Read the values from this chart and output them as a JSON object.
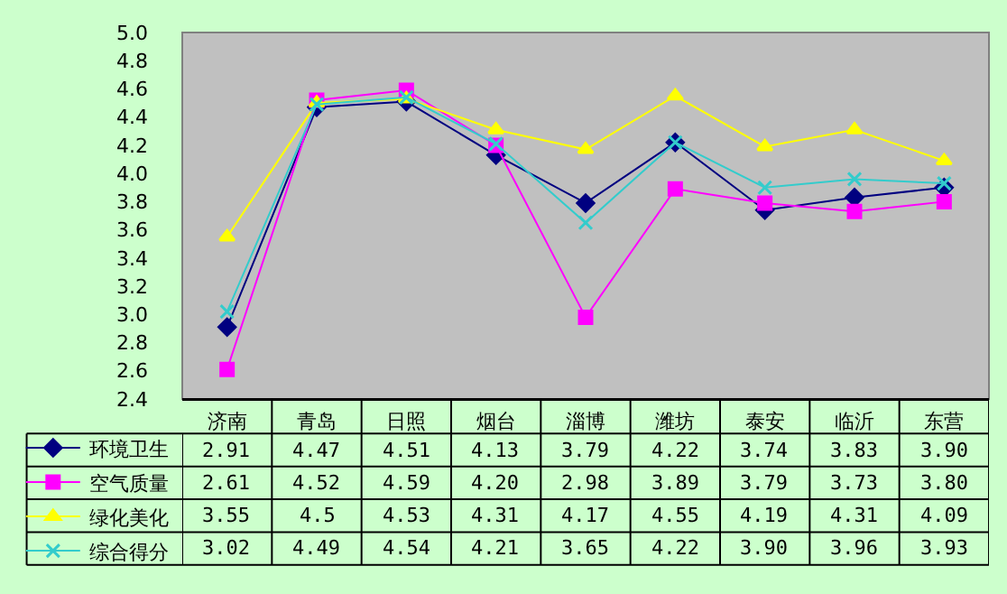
{
  "chart_data": {
    "type": "line",
    "categories": [
      "济南",
      "青岛",
      "日照",
      "烟台",
      "淄博",
      "潍坊",
      "泰安",
      "临沂",
      "东营"
    ],
    "series": [
      {
        "name": "环境卫生",
        "color": "#000080",
        "marker": "diamond",
        "values": [
          2.91,
          4.47,
          4.51,
          4.13,
          3.79,
          4.22,
          3.74,
          3.83,
          3.9
        ],
        "value_labels": [
          "2.91",
          "4.47",
          "4.51",
          "4.13",
          "3.79",
          "4.22",
          "3.74",
          "3.83",
          "3.90"
        ]
      },
      {
        "name": "空气质量",
        "color": "#ff00ff",
        "marker": "square",
        "values": [
          2.61,
          4.52,
          4.59,
          4.2,
          2.98,
          3.89,
          3.79,
          3.73,
          3.8
        ],
        "value_labels": [
          "2.61",
          "4.52",
          "4.59",
          "4.20",
          "2.98",
          "3.89",
          "3.79",
          "3.73",
          "3.80"
        ]
      },
      {
        "name": "绿化美化",
        "color": "#ffff00",
        "marker": "triangle",
        "values": [
          3.55,
          4.5,
          4.53,
          4.31,
          4.17,
          4.55,
          4.19,
          4.31,
          4.09
        ],
        "value_labels": [
          "3.55",
          "4.5",
          "4.53",
          "4.31",
          "4.17",
          "4.55",
          "4.19",
          "4.31",
          "4.09"
        ]
      },
      {
        "name": "综合得分",
        "color": "#33cccc",
        "marker": "cross",
        "values": [
          3.02,
          4.49,
          4.54,
          4.21,
          3.65,
          4.22,
          3.9,
          3.96,
          3.93
        ],
        "value_labels": [
          "3.02",
          "4.49",
          "4.54",
          "4.21",
          "3.65",
          "4.22",
          "3.90",
          "3.96",
          "3.93"
        ]
      }
    ],
    "ylim": [
      2.4,
      5.0
    ],
    "yticks": [
      2.4,
      2.6,
      2.8,
      {
        "value": 3.0,
        "label": "3.0"
      },
      3.2,
      3.4,
      3.6,
      3.8,
      {
        "value": 4.0,
        "label": "4.0"
      },
      4.2,
      4.4,
      4.6,
      4.8,
      {
        "value": 5.0,
        "label": "5.0"
      }
    ],
    "grid": false,
    "legend": "bottom left",
    "line_style": "solid"
  }
}
